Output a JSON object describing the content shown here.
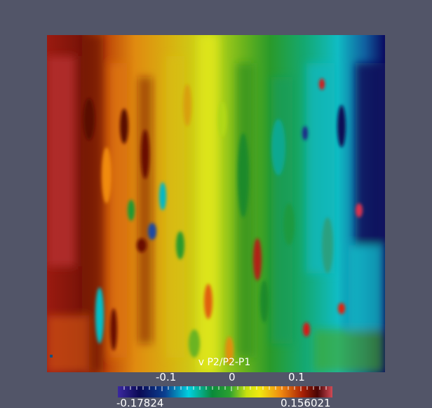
{
  "viewport": {
    "background_color": "#525568"
  },
  "colorbar": {
    "title": "v P2/P2-P1",
    "ticks": [
      "-0.1",
      "0",
      "0.1"
    ],
    "range_min": "-0.17824",
    "range_max": "0.156021",
    "colormap_stops": [
      "#3b28a0",
      "#0a0a55",
      "#0a3f90",
      "#00d0e0",
      "#0a8a3a",
      "#2aa030",
      "#c8e010",
      "#f0e810",
      "#f08a10",
      "#a82006",
      "#4a0404",
      "#d04a55"
    ]
  },
  "field": {
    "name": "v P2/P2-P1"
  }
}
